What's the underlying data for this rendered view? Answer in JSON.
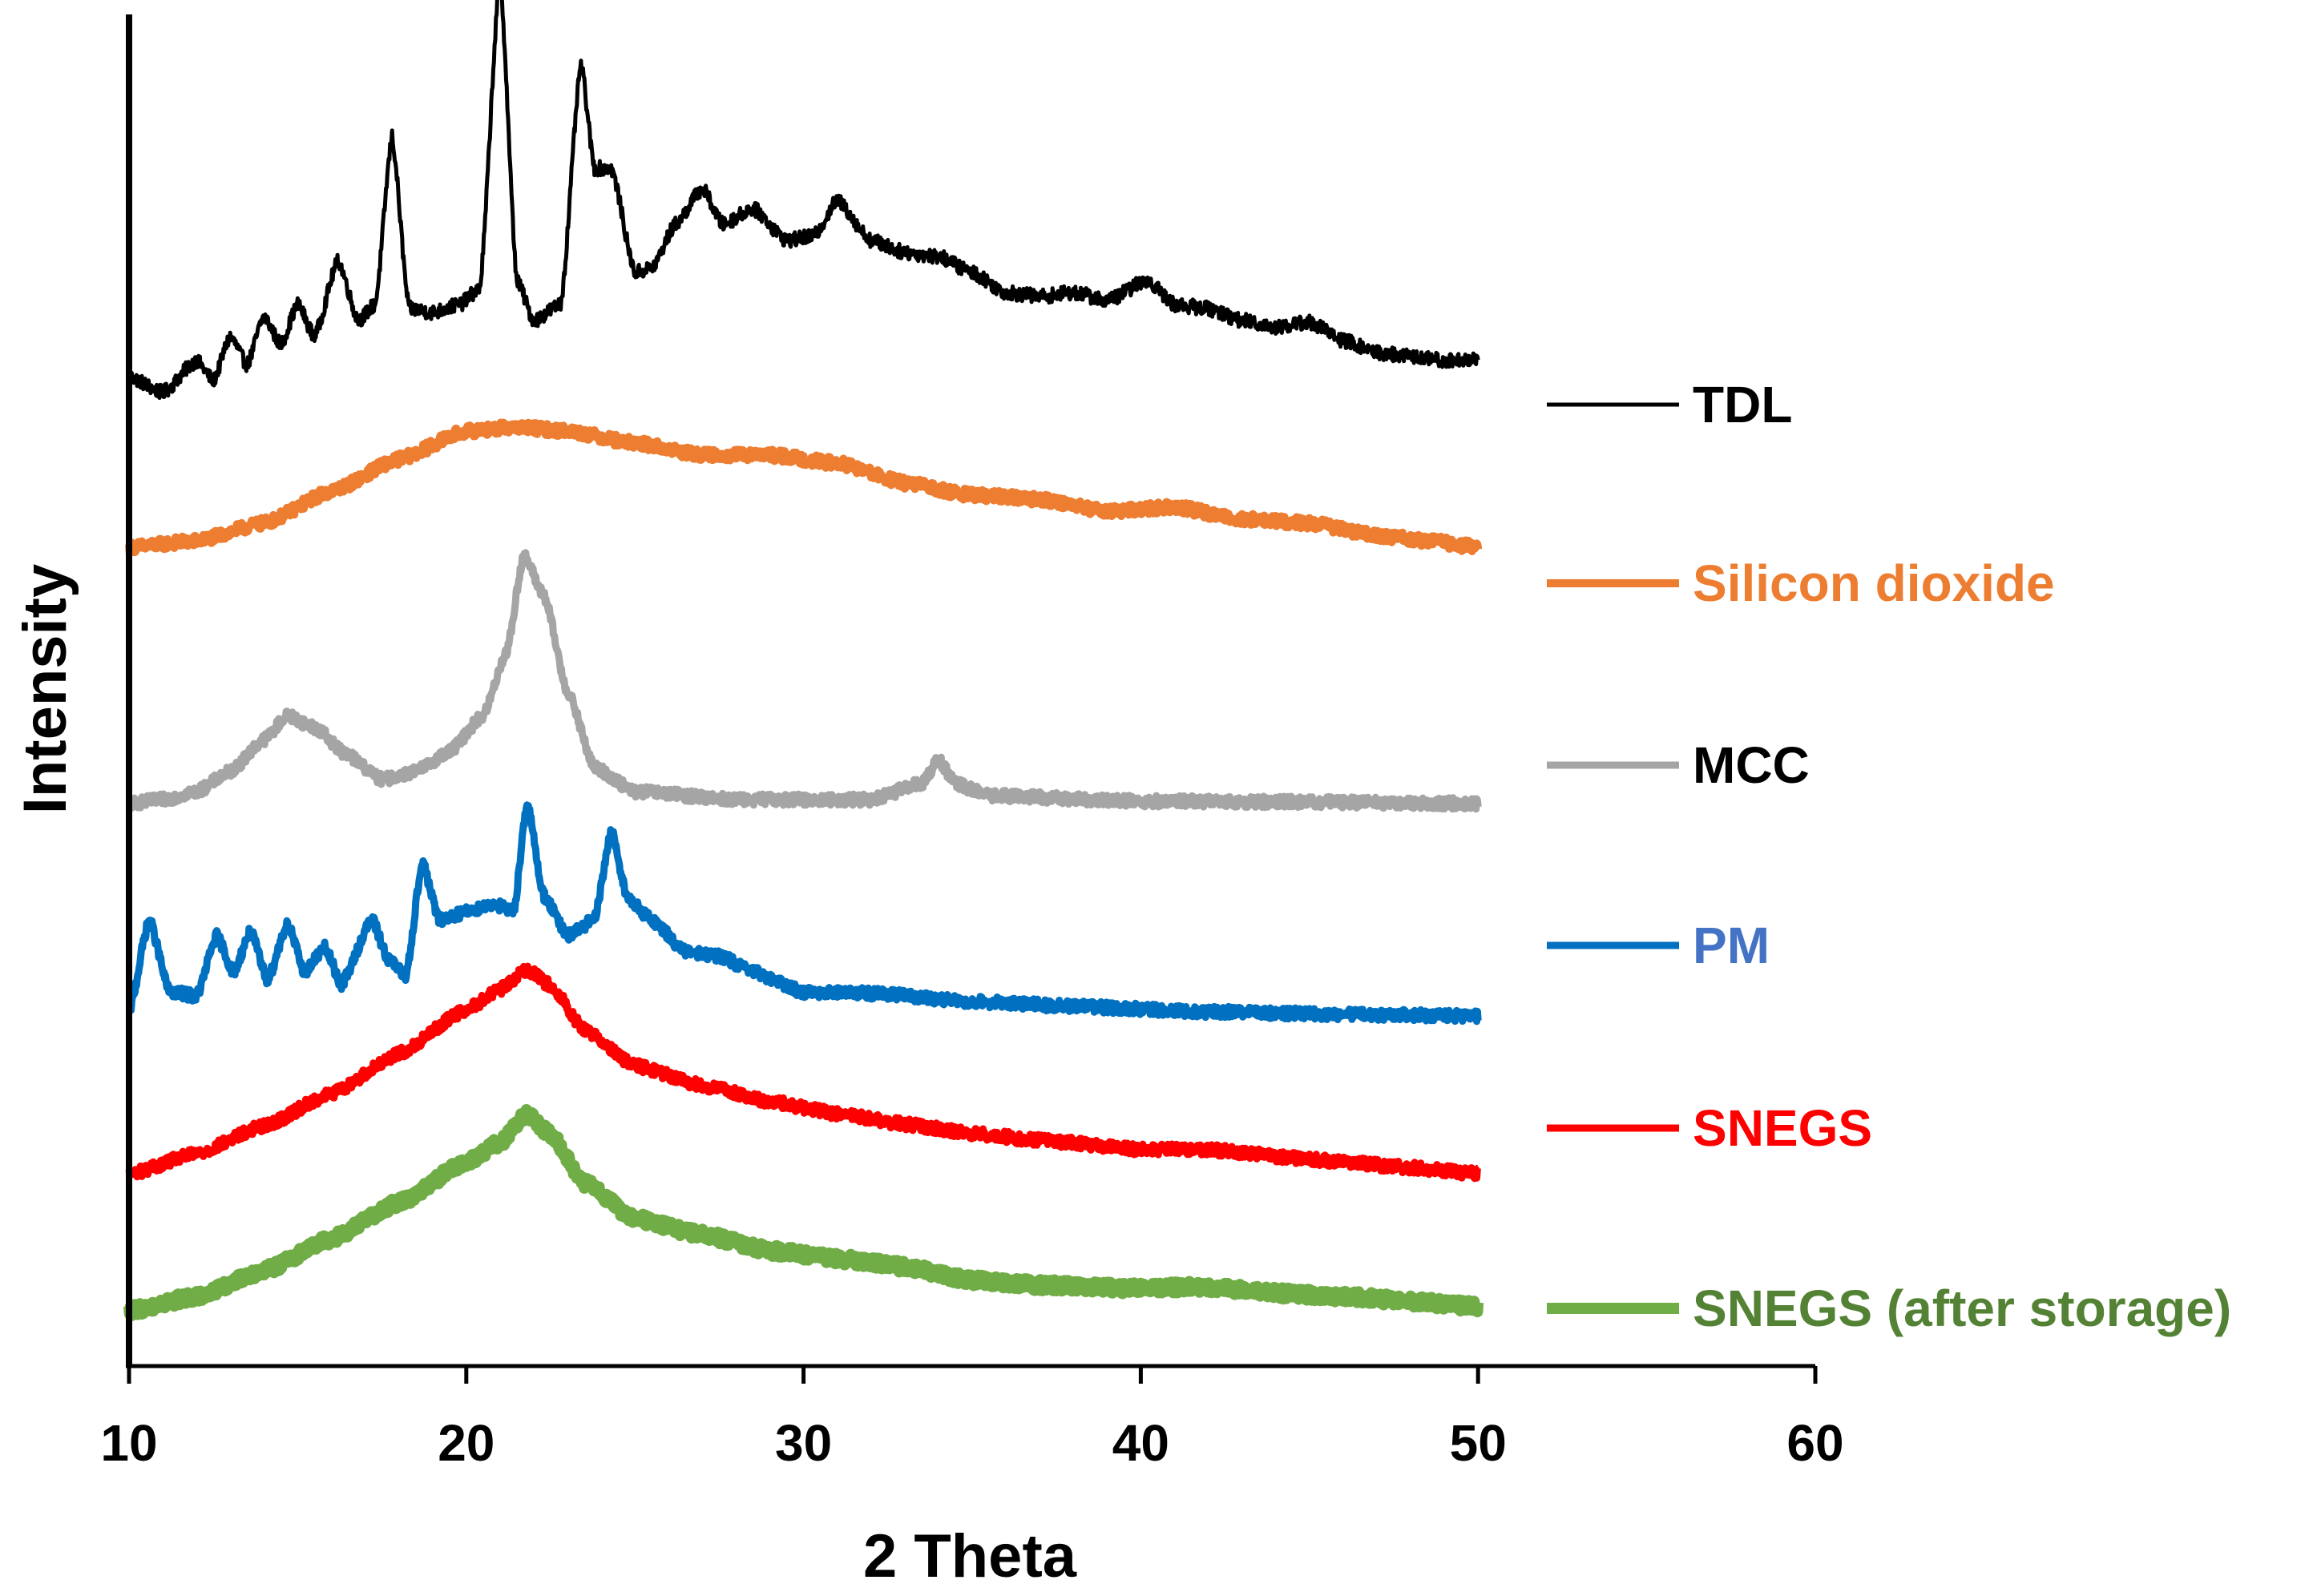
{
  "chart_data": {
    "type": "line",
    "title": "",
    "xlabel": "2 Theta",
    "ylabel": "Intensity",
    "xlim": [
      10,
      60
    ],
    "xticks": [
      10,
      20,
      30,
      40,
      50,
      60
    ],
    "y_ticks_shown": false,
    "y_units": "arbitrary (stacked traces, offset for clarity)",
    "series": [
      {
        "name": "TDL",
        "color": "#000000",
        "label_color": "#000000",
        "baseline": 0.0,
        "offset": 5.0,
        "points": [
          [
            10,
            0.3
          ],
          [
            11,
            0.1
          ],
          [
            12,
            0.5
          ],
          [
            12.5,
            0.25
          ],
          [
            13,
            0.8
          ],
          [
            13.5,
            0.45
          ],
          [
            14,
            1.05
          ],
          [
            14.5,
            0.7
          ],
          [
            15,
            1.2
          ],
          [
            15.5,
            0.8
          ],
          [
            16.2,
            1.75
          ],
          [
            16.8,
            1.0
          ],
          [
            17.3,
            1.2
          ],
          [
            17.8,
            3.3
          ],
          [
            18.3,
            1.15
          ],
          [
            19,
            1.1
          ],
          [
            19.8,
            1.2
          ],
          [
            20.4,
            1.4
          ],
          [
            21,
            5.3
          ],
          [
            21.5,
            1.5
          ],
          [
            22,
            1.0
          ],
          [
            22.8,
            1.2
          ],
          [
            23.4,
            4.2
          ],
          [
            23.8,
            2.9
          ],
          [
            24.3,
            2.9
          ],
          [
            25,
            1.6
          ],
          [
            25.5,
            1.65
          ],
          [
            26.2,
            2.2
          ],
          [
            27,
            2.65
          ],
          [
            27.6,
            2.2
          ],
          [
            28.5,
            2.4
          ],
          [
            29.5,
            2.0
          ],
          [
            30.3,
            2.05
          ],
          [
            31,
            2.5
          ],
          [
            32,
            2.0
          ],
          [
            33,
            1.85
          ],
          [
            34,
            1.8
          ],
          [
            35,
            1.6
          ],
          [
            36,
            1.35
          ],
          [
            37,
            1.3
          ],
          [
            38,
            1.35
          ],
          [
            39,
            1.25
          ],
          [
            40.2,
            1.5
          ],
          [
            41,
            1.2
          ],
          [
            42,
            1.15
          ],
          [
            43,
            1.0
          ],
          [
            44,
            0.92
          ],
          [
            45,
            0.98
          ],
          [
            46,
            0.75
          ],
          [
            47,
            0.6
          ],
          [
            48,
            0.55
          ],
          [
            49,
            0.5
          ],
          [
            50,
            0.52
          ]
        ]
      },
      {
        "name": "Silicon dioxide",
        "color": "#ED7D31",
        "label_color": "#ED7D31",
        "baseline": 0.0,
        "offset": 4.0,
        "points": [
          [
            10,
            0.0
          ],
          [
            12,
            0.08
          ],
          [
            14,
            0.3
          ],
          [
            16,
            0.7
          ],
          [
            18,
            1.1
          ],
          [
            20,
            1.45
          ],
          [
            21.5,
            1.5
          ],
          [
            23,
            1.45
          ],
          [
            25,
            1.3
          ],
          [
            27,
            1.15
          ],
          [
            29,
            1.15
          ],
          [
            31,
            1.05
          ],
          [
            33,
            0.8
          ],
          [
            35,
            0.65
          ],
          [
            37,
            0.6
          ],
          [
            39,
            0.45
          ],
          [
            41,
            0.5
          ],
          [
            43,
            0.35
          ],
          [
            45,
            0.3
          ],
          [
            47,
            0.15
          ],
          [
            48.5,
            0.08
          ],
          [
            50,
            0.0
          ]
        ]
      },
      {
        "name": "MCC",
        "color": "#A5A5A5",
        "label_color": "#000000",
        "baseline": 0.0,
        "offset": 3.0,
        "points": [
          [
            10,
            0.0
          ],
          [
            11,
            0.05
          ],
          [
            12,
            0.15
          ],
          [
            13,
            0.4
          ],
          [
            14,
            0.8
          ],
          [
            14.7,
            1.1
          ],
          [
            15.5,
            0.95
          ],
          [
            16.5,
            0.6
          ],
          [
            17.5,
            0.3
          ],
          [
            18.5,
            0.4
          ],
          [
            19.5,
            0.65
          ],
          [
            20.5,
            1.1
          ],
          [
            21.2,
            1.9
          ],
          [
            21.7,
            3.1
          ],
          [
            22.3,
            2.6
          ],
          [
            23,
            1.4
          ],
          [
            23.8,
            0.45
          ],
          [
            25,
            0.15
          ],
          [
            28,
            0.05
          ],
          [
            32,
            0.05
          ],
          [
            33.5,
            0.25
          ],
          [
            34,
            0.55
          ],
          [
            34.5,
            0.25
          ],
          [
            35.5,
            0.1
          ],
          [
            40,
            0.03
          ],
          [
            45,
            0.02
          ],
          [
            50,
            0.0
          ]
        ]
      },
      {
        "name": "PM",
        "color": "#0070C0",
        "label_color": "#4472C4",
        "baseline": 0.0,
        "offset": 2.0,
        "points": [
          [
            10,
            0.05
          ],
          [
            10.6,
            1.2
          ],
          [
            11.2,
            0.3
          ],
          [
            12,
            0.25
          ],
          [
            12.6,
            1.0
          ],
          [
            13.1,
            0.55
          ],
          [
            13.6,
            1.05
          ],
          [
            14.1,
            0.45
          ],
          [
            14.7,
            1.15
          ],
          [
            15.2,
            0.55
          ],
          [
            15.8,
            0.85
          ],
          [
            16.3,
            0.4
          ],
          [
            17.2,
            1.2
          ],
          [
            17.7,
            0.7
          ],
          [
            18.2,
            0.5
          ],
          [
            18.7,
            1.9
          ],
          [
            19.2,
            1.2
          ],
          [
            20,
            1.3
          ],
          [
            20.8,
            1.4
          ],
          [
            21.4,
            1.3
          ],
          [
            21.8,
            2.65
          ],
          [
            22.3,
            1.5
          ],
          [
            23,
            1.0
          ],
          [
            23.8,
            1.2
          ],
          [
            24.3,
            2.3
          ],
          [
            24.8,
            1.45
          ],
          [
            25.5,
            1.2
          ],
          [
            26.5,
            0.8
          ],
          [
            27.5,
            0.75
          ],
          [
            28.5,
            0.55
          ],
          [
            30,
            0.3
          ],
          [
            32,
            0.28
          ],
          [
            35,
            0.18
          ],
          [
            38,
            0.12
          ],
          [
            42,
            0.05
          ],
          [
            46,
            0.02
          ],
          [
            50,
            0.0
          ]
        ]
      },
      {
        "name": "SNEGS",
        "color": "#FF0000",
        "label_color": "#FF0000",
        "baseline": 0.0,
        "offset": 1.0,
        "points": [
          [
            10,
            0.0
          ],
          [
            12,
            0.25
          ],
          [
            14,
            0.6
          ],
          [
            16,
            1.0
          ],
          [
            18,
            1.5
          ],
          [
            20,
            2.05
          ],
          [
            21,
            2.3
          ],
          [
            21.8,
            2.55
          ],
          [
            22.5,
            2.35
          ],
          [
            23.5,
            1.8
          ],
          [
            25,
            1.35
          ],
          [
            27,
            1.1
          ],
          [
            29,
            0.9
          ],
          [
            31,
            0.75
          ],
          [
            33,
            0.62
          ],
          [
            35,
            0.5
          ],
          [
            37,
            0.42
          ],
          [
            40,
            0.3
          ],
          [
            42,
            0.3
          ],
          [
            45,
            0.18
          ],
          [
            48,
            0.08
          ],
          [
            50,
            0.0
          ]
        ]
      },
      {
        "name": "SNEGS (after storage)",
        "color": "#70AD47",
        "label_color": "#548235",
        "baseline": 0.0,
        "offset": 0.0,
        "points": [
          [
            10,
            0.0
          ],
          [
            12,
            0.18
          ],
          [
            14,
            0.5
          ],
          [
            16,
            0.9
          ],
          [
            18,
            1.35
          ],
          [
            20,
            1.85
          ],
          [
            21,
            2.1
          ],
          [
            21.8,
            2.45
          ],
          [
            22.5,
            2.2
          ],
          [
            23.5,
            1.6
          ],
          [
            25,
            1.15
          ],
          [
            27,
            0.95
          ],
          [
            29,
            0.75
          ],
          [
            31,
            0.65
          ],
          [
            33,
            0.55
          ],
          [
            35,
            0.38
          ],
          [
            37,
            0.32
          ],
          [
            40,
            0.28
          ],
          [
            42,
            0.3
          ],
          [
            44,
            0.22
          ],
          [
            46,
            0.18
          ],
          [
            48,
            0.12
          ],
          [
            50,
            0.05
          ]
        ]
      }
    ]
  }
}
